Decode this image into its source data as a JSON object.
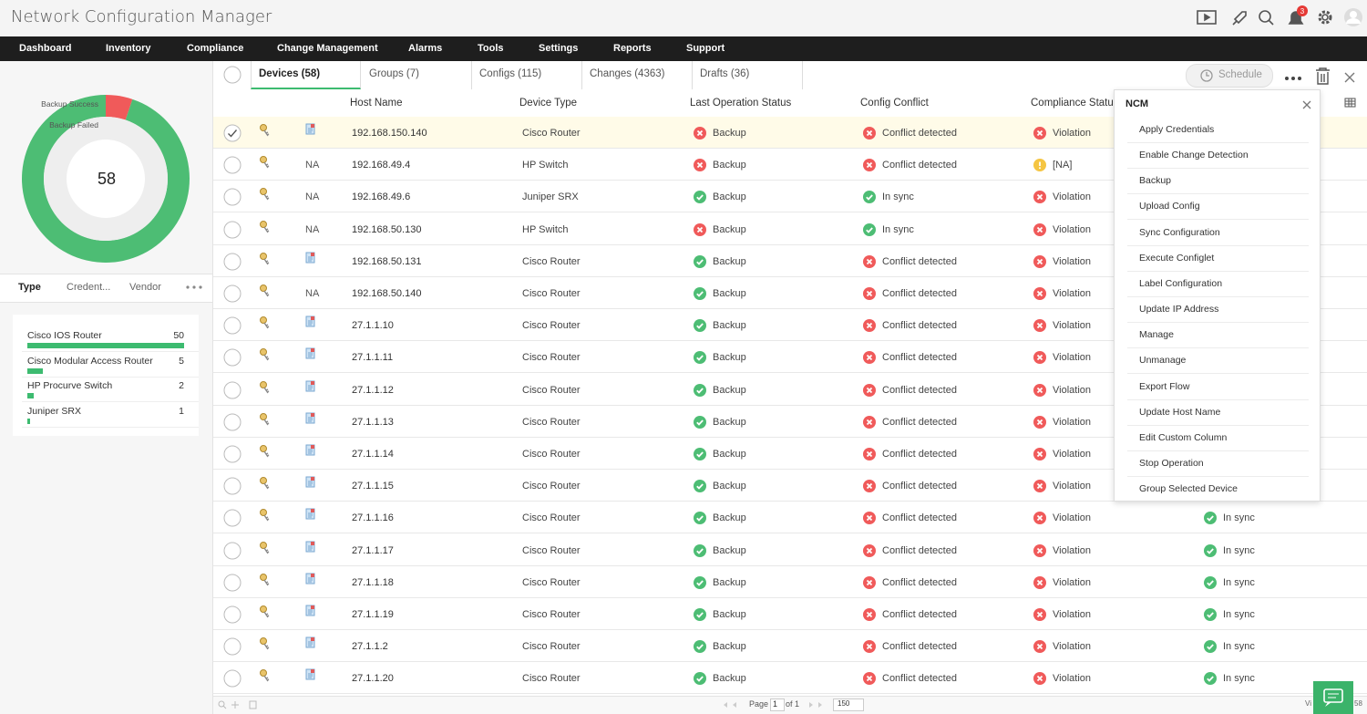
{
  "header": {
    "title": "Network Configuration Manager",
    "notification_count": 3
  },
  "nav": [
    "Dashboard",
    "Inventory",
    "Compliance",
    "Change Management",
    "Alarms",
    "Tools",
    "Settings",
    "Reports",
    "Support"
  ],
  "summary": {
    "total": 58,
    "segments": [
      {
        "name": "Backup Success",
        "value": 55,
        "color": "#4dbd74"
      },
      {
        "name": "Backup Failed",
        "value": 3,
        "color": "#f05a5a"
      }
    ]
  },
  "filter_tabs": [
    "Type",
    "Credent...",
    "Vendor"
  ],
  "type_counts": [
    {
      "name": "Cisco IOS Router",
      "count": 50
    },
    {
      "name": "Cisco Modular Access Router",
      "count": 5
    },
    {
      "name": "HP Procurve Switch",
      "count": 2
    },
    {
      "name": "Juniper SRX",
      "count": 1
    }
  ],
  "tabs": [
    "Devices (58)",
    "Groups (7)",
    "Configs (115)",
    "Changes (4363)",
    "Drafts (36)"
  ],
  "schedule_button": "Schedule",
  "columns": [
    "Host Name",
    "Device Type",
    "Last Operation Status",
    "Config Conflict",
    "Compliance Status"
  ],
  "rows": [
    {
      "selected": true,
      "icon": null,
      "host": "192.168.150.140",
      "type": "Cisco Router",
      "last_op": {
        "text": "Backup",
        "status": "fail"
      },
      "conflict": {
        "text": "Conflict detected",
        "status": "fail"
      },
      "compliance": {
        "text": "Violation",
        "status": "fail"
      },
      "extra": null
    },
    {
      "selected": false,
      "icon": "NA",
      "host": "192.168.49.4",
      "type": "HP Switch",
      "last_op": {
        "text": "Backup",
        "status": "fail"
      },
      "conflict": {
        "text": "Conflict detected",
        "status": "fail"
      },
      "compliance": {
        "text": "[NA]",
        "status": "warn"
      },
      "extra": null
    },
    {
      "selected": false,
      "icon": "NA",
      "host": "192.168.49.6",
      "type": "Juniper SRX",
      "last_op": {
        "text": "Backup",
        "status": "ok"
      },
      "conflict": {
        "text": "In sync",
        "status": "ok"
      },
      "compliance": {
        "text": "Violation",
        "status": "fail"
      },
      "extra": null
    },
    {
      "selected": false,
      "icon": "NA",
      "host": "192.168.50.130",
      "type": "HP Switch",
      "last_op": {
        "text": "Backup",
        "status": "fail"
      },
      "conflict": {
        "text": "In sync",
        "status": "ok"
      },
      "compliance": {
        "text": "Violation",
        "status": "fail"
      },
      "extra": null
    },
    {
      "selected": false,
      "icon": null,
      "host": "192.168.50.131",
      "type": "Cisco Router",
      "last_op": {
        "text": "Backup",
        "status": "ok"
      },
      "conflict": {
        "text": "Conflict detected",
        "status": "fail"
      },
      "compliance": {
        "text": "Violation",
        "status": "fail"
      },
      "extra": null
    },
    {
      "selected": false,
      "icon": "NA",
      "host": "192.168.50.140",
      "type": "Cisco Router",
      "last_op": {
        "text": "Backup",
        "status": "ok"
      },
      "conflict": {
        "text": "Conflict detected",
        "status": "fail"
      },
      "compliance": {
        "text": "Violation",
        "status": "fail"
      },
      "extra": null
    },
    {
      "selected": false,
      "icon": null,
      "host": "27.1.1.10",
      "type": "Cisco Router",
      "last_op": {
        "text": "Backup",
        "status": "ok"
      },
      "conflict": {
        "text": "Conflict detected",
        "status": "fail"
      },
      "compliance": {
        "text": "Violation",
        "status": "fail"
      },
      "extra": null
    },
    {
      "selected": false,
      "icon": null,
      "host": "27.1.1.11",
      "type": "Cisco Router",
      "last_op": {
        "text": "Backup",
        "status": "ok"
      },
      "conflict": {
        "text": "Conflict detected",
        "status": "fail"
      },
      "compliance": {
        "text": "Violation",
        "status": "fail"
      },
      "extra": null
    },
    {
      "selected": false,
      "icon": null,
      "host": "27.1.1.12",
      "type": "Cisco Router",
      "last_op": {
        "text": "Backup",
        "status": "ok"
      },
      "conflict": {
        "text": "Conflict detected",
        "status": "fail"
      },
      "compliance": {
        "text": "Violation",
        "status": "fail"
      },
      "extra": null
    },
    {
      "selected": false,
      "icon": null,
      "host": "27.1.1.13",
      "type": "Cisco Router",
      "last_op": {
        "text": "Backup",
        "status": "ok"
      },
      "conflict": {
        "text": "Conflict detected",
        "status": "fail"
      },
      "compliance": {
        "text": "Violation",
        "status": "fail"
      },
      "extra": null
    },
    {
      "selected": false,
      "icon": null,
      "host": "27.1.1.14",
      "type": "Cisco Router",
      "last_op": {
        "text": "Backup",
        "status": "ok"
      },
      "conflict": {
        "text": "Conflict detected",
        "status": "fail"
      },
      "compliance": {
        "text": "Violation",
        "status": "fail"
      },
      "extra": null
    },
    {
      "selected": false,
      "icon": null,
      "host": "27.1.1.15",
      "type": "Cisco Router",
      "last_op": {
        "text": "Backup",
        "status": "ok"
      },
      "conflict": {
        "text": "Conflict detected",
        "status": "fail"
      },
      "compliance": {
        "text": "Violation",
        "status": "fail"
      },
      "extra": null
    },
    {
      "selected": false,
      "icon": null,
      "host": "27.1.1.16",
      "type": "Cisco Router",
      "last_op": {
        "text": "Backup",
        "status": "ok"
      },
      "conflict": {
        "text": "Conflict detected",
        "status": "fail"
      },
      "compliance": {
        "text": "Violation",
        "status": "fail"
      },
      "extra": {
        "text": "In sync",
        "status": "ok"
      }
    },
    {
      "selected": false,
      "icon": null,
      "host": "27.1.1.17",
      "type": "Cisco Router",
      "last_op": {
        "text": "Backup",
        "status": "ok"
      },
      "conflict": {
        "text": "Conflict detected",
        "status": "fail"
      },
      "compliance": {
        "text": "Violation",
        "status": "fail"
      },
      "extra": {
        "text": "In sync",
        "status": "ok"
      }
    },
    {
      "selected": false,
      "icon": null,
      "host": "27.1.1.18",
      "type": "Cisco Router",
      "last_op": {
        "text": "Backup",
        "status": "ok"
      },
      "conflict": {
        "text": "Conflict detected",
        "status": "fail"
      },
      "compliance": {
        "text": "Violation",
        "status": "fail"
      },
      "extra": {
        "text": "In sync",
        "status": "ok"
      }
    },
    {
      "selected": false,
      "icon": null,
      "host": "27.1.1.19",
      "type": "Cisco Router",
      "last_op": {
        "text": "Backup",
        "status": "ok"
      },
      "conflict": {
        "text": "Conflict detected",
        "status": "fail"
      },
      "compliance": {
        "text": "Violation",
        "status": "fail"
      },
      "extra": {
        "text": "In sync",
        "status": "ok"
      }
    },
    {
      "selected": false,
      "icon": null,
      "host": "27.1.1.2",
      "type": "Cisco Router",
      "last_op": {
        "text": "Backup",
        "status": "ok"
      },
      "conflict": {
        "text": "Conflict detected",
        "status": "fail"
      },
      "compliance": {
        "text": "Violation",
        "status": "fail"
      },
      "extra": {
        "text": "In sync",
        "status": "ok"
      }
    },
    {
      "selected": false,
      "icon": null,
      "host": "27.1.1.20",
      "type": "Cisco Router",
      "last_op": {
        "text": "Backup",
        "status": "ok"
      },
      "conflict": {
        "text": "Conflict detected",
        "status": "fail"
      },
      "compliance": {
        "text": "Violation",
        "status": "fail"
      },
      "extra": {
        "text": "In sync",
        "status": "ok"
      }
    }
  ],
  "menu": {
    "title": "NCM",
    "items": [
      "Apply Credentials",
      "Enable Change Detection",
      "Backup",
      "Upload Config",
      "Sync Configuration",
      "Execute Configlet",
      "Label Configuration",
      "Update IP Address",
      "Manage",
      "Unmanage",
      "Export Flow",
      "Update Host Name",
      "Edit Custom Column",
      "Stop Operation",
      "Group Selected Device"
    ]
  },
  "pager": {
    "page_label": "Page",
    "page": "1",
    "of": "of 1",
    "per_page": "150",
    "view": "Vi",
    "count": "58"
  }
}
